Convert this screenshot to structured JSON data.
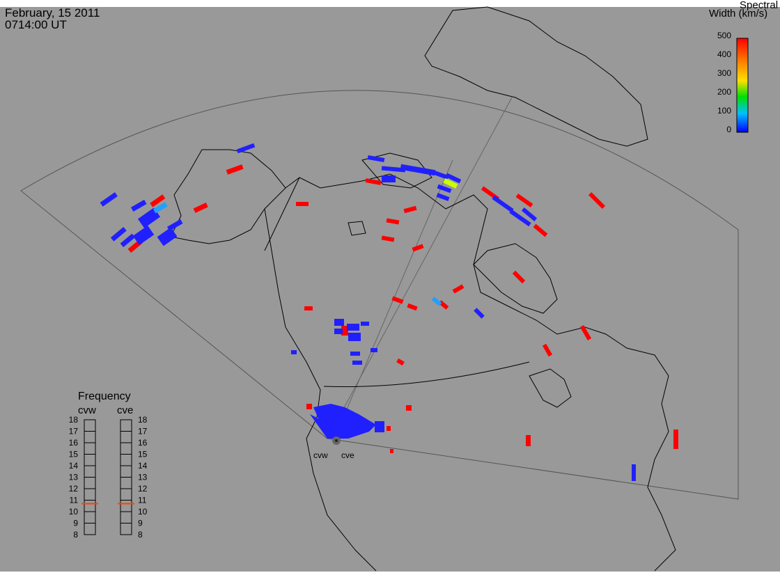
{
  "header": {
    "date": "February, 15 2011",
    "time": "0714:00 UT"
  },
  "colorbar": {
    "title_line1": "Spectral",
    "title_line2": "Width (km/s)",
    "ticks": [
      "500",
      "400",
      "300",
      "200",
      "100",
      "0"
    ],
    "gradient": [
      "#ff0000",
      "#ff8000",
      "#ffe000",
      "#00e000",
      "#00c0ff",
      "#0000ff"
    ]
  },
  "frequency": {
    "title": "Frequency",
    "cvw_label": "cvw",
    "cve_label": "cve",
    "ticks": [
      "18",
      "17",
      "16",
      "15",
      "14",
      "13",
      "12",
      "11",
      "10",
      "9",
      "8"
    ],
    "cvw_marker": 10.7,
    "cve_marker": 10.7,
    "marker_color": "#ff4000"
  },
  "radars": {
    "cvw_label": "cvw",
    "cve_label": "cve"
  },
  "colors": {
    "background": "#999999",
    "red": "#ff0000",
    "blue": "#2020ff",
    "lightblue": "#20a0ff",
    "yellow": "#ccff00"
  }
}
